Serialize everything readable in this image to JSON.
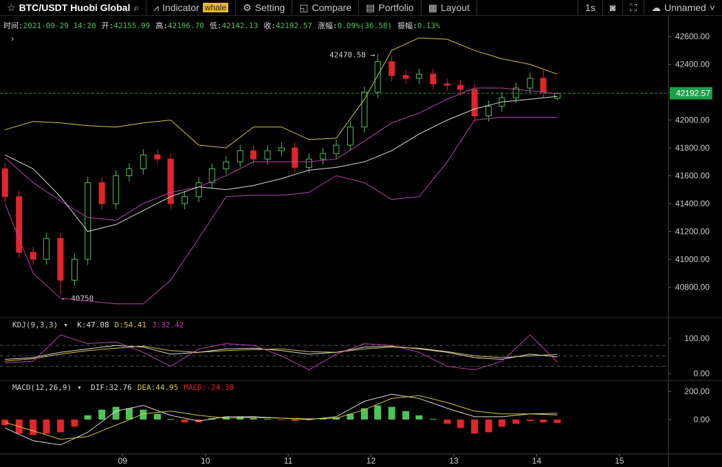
{
  "toolbar": {
    "symbol": "BTC/USDT  Huobi Global",
    "items": [
      "Indicator",
      "Setting",
      "Compare",
      "Portfolio",
      "Layout"
    ],
    "badge": "whale",
    "interval": "1s",
    "layout_name": "Unnamed"
  },
  "info": [
    {
      "label": "时间:",
      "value": "2021-09-29 14:20"
    },
    {
      "label": "开:",
      "value": "42155.99"
    },
    {
      "label": "高:",
      "value": "42196.70"
    },
    {
      "label": "低:",
      "value": "42142.13"
    },
    {
      "label": "收:",
      "value": "42192.57"
    },
    {
      "label": "涨幅:",
      "value": "0.09%(36.58)"
    },
    {
      "label": "振幅:",
      "value": "0.13%"
    }
  ],
  "chart_data": [
    {
      "type": "candlestick",
      "xlim": [
        7.52,
        15.59
      ],
      "ylim": [
        40590,
        42640
      ],
      "grid": false,
      "yticks": [
        {
          "value": 40800,
          "label": "40800.00"
        },
        {
          "value": 41000,
          "label": "41000.00"
        },
        {
          "value": 41200,
          "label": "41200.00"
        },
        {
          "value": 41400,
          "label": "41400.00"
        },
        {
          "value": 41600,
          "label": "41600.00"
        },
        {
          "value": 41800,
          "label": "41800.00"
        },
        {
          "value": 42000,
          "label": "42000.00"
        },
        {
          "value": 42200,
          "label": "42200.00"
        },
        {
          "value": 42400,
          "label": "42400.00"
        },
        {
          "value": 42600,
          "label": "42600.00"
        }
      ],
      "up_color": "#4fc35a",
      "down_color": "#e0262b",
      "last_price_color": "#1f9e4a",
      "max_label": "42470.58 →",
      "min_label": "← 40750",
      "candles": {
        "x": [
          7.58,
          7.75,
          7.92,
          8.08,
          8.25,
          8.42,
          8.58,
          8.75,
          8.92,
          9.08,
          9.25,
          9.42,
          9.58,
          9.75,
          9.92,
          10.08,
          10.25,
          10.42,
          10.58,
          10.75,
          10.92,
          11.08,
          11.25,
          11.42,
          11.58,
          11.75,
          11.92,
          12.08,
          12.25,
          12.42,
          12.58,
          12.75,
          12.92,
          13.08,
          13.25,
          13.42,
          13.58,
          13.75,
          13.92,
          14.08,
          14.25
        ],
        "open": [
          41650,
          41450,
          41050,
          41000,
          41150,
          40850,
          41000,
          41550,
          41400,
          41600,
          41650,
          41750,
          41720,
          41400,
          41450,
          41550,
          41650,
          41700,
          41780,
          41720,
          41780,
          41800,
          41660,
          41720,
          41760,
          41820,
          41950,
          42200,
          42420,
          42320,
          42300,
          42330,
          42260,
          42250,
          42220,
          42030,
          42100,
          42160,
          42230,
          42300,
          42155.99
        ],
        "high": [
          41690,
          41490,
          41090,
          41190,
          41190,
          41040,
          41590,
          41590,
          41640,
          41690,
          41790,
          41790,
          41760,
          41490,
          41590,
          41690,
          41740,
          41820,
          41820,
          41820,
          41840,
          41840,
          41760,
          41800,
          41860,
          41990,
          42240,
          42470.58,
          42460,
          42360,
          42370,
          42370,
          42300,
          42290,
          42260,
          42140,
          42200,
          42270,
          42340,
          42360,
          42196.7
        ],
        "low": [
          41410,
          41010,
          40960,
          40960,
          40750,
          40810,
          40960,
          41360,
          41360,
          41560,
          41610,
          41680,
          41360,
          41360,
          41410,
          41510,
          41610,
          41660,
          41680,
          41680,
          41740,
          41620,
          41620,
          41680,
          41720,
          41780,
          41910,
          42160,
          42280,
          42260,
          42260,
          42220,
          42210,
          42180,
          41990,
          41990,
          42060,
          42120,
          42190,
          42160,
          42142.13
        ],
        "close": [
          41450,
          41050,
          41000,
          41150,
          40850,
          41000,
          41550,
          41400,
          41600,
          41650,
          41750,
          41720,
          41400,
          41450,
          41550,
          41650,
          41700,
          41780,
          41720,
          41780,
          41800,
          41660,
          41720,
          41760,
          41820,
          41950,
          42200,
          42420,
          42320,
          42300,
          42330,
          42260,
          42250,
          42220,
          42030,
          42100,
          42160,
          42230,
          42300,
          42200,
          42192.57
        ]
      },
      "line_x": [
        7.58,
        7.92,
        8.25,
        8.58,
        8.92,
        9.25,
        9.58,
        9.92,
        10.25,
        10.58,
        10.92,
        11.25,
        11.58,
        11.92,
        12.25,
        12.58,
        12.92,
        13.25,
        13.58,
        13.92,
        14.25
      ],
      "series": [
        {
          "color": "#d6c640",
          "values": [
            41930,
            41990,
            41980,
            41960,
            41950,
            41980,
            42000,
            41820,
            41800,
            41950,
            41950,
            41860,
            41870,
            42150,
            42500,
            42590,
            42580,
            42500,
            42440,
            42400,
            42330
          ]
        },
        {
          "color": "#c040b0",
          "values": [
            41730,
            41550,
            41420,
            41300,
            41280,
            41400,
            41480,
            41520,
            41600,
            41700,
            41700,
            41700,
            41720,
            41850,
            41980,
            42050,
            42150,
            42230,
            42230,
            42210,
            42190
          ]
        },
        {
          "color": "#c040b0",
          "values": [
            41400,
            40900,
            40720,
            40700,
            40680,
            40680,
            40850,
            41150,
            41450,
            41460,
            41460,
            41480,
            41600,
            41550,
            41430,
            41450,
            41700,
            42000,
            42020,
            42020,
            42020
          ]
        },
        {
          "color": "#dcdcdc",
          "values": [
            41750,
            41650,
            41450,
            41200,
            41250,
            41350,
            41450,
            41520,
            41500,
            41530,
            41580,
            41640,
            41660,
            41700,
            41780,
            41900,
            42000,
            42080,
            42130,
            42150,
            42170
          ]
        }
      ]
    },
    {
      "type": "line",
      "title": "KDJ(9,3,3)",
      "xlim": [
        7.52,
        15.59
      ],
      "ylim": [
        -18,
        159
      ],
      "grid": false,
      "yticks": [
        {
          "value": 0,
          "label": "0.00"
        },
        {
          "value": 100,
          "label": "100.00"
        }
      ],
      "reference_lines": [
        20,
        50,
        80
      ],
      "line_x": [
        7.58,
        7.92,
        8.25,
        8.58,
        8.92,
        9.25,
        9.58,
        9.92,
        10.25,
        10.58,
        10.92,
        11.25,
        11.58,
        11.92,
        12.25,
        12.58,
        12.92,
        13.25,
        13.58,
        13.92,
        14.25
      ],
      "series": [
        {
          "label": "K:47.08",
          "color": "#dcdcdc",
          "values": [
            40,
            45,
            60,
            70,
            80,
            75,
            55,
            60,
            70,
            72,
            65,
            55,
            60,
            75,
            78,
            70,
            60,
            45,
            40,
            55,
            47.08
          ]
        },
        {
          "label": "D:54.41",
          "color": "#d6c640",
          "values": [
            35,
            42,
            55,
            65,
            72,
            78,
            65,
            60,
            65,
            68,
            70,
            62,
            60,
            70,
            75,
            72,
            62,
            50,
            45,
            50,
            54.41
          ]
        },
        {
          "label": "J:32.42",
          "color": "#c040b0",
          "values": [
            30,
            35,
            110,
            85,
            90,
            60,
            20,
            70,
            85,
            80,
            50,
            10,
            55,
            85,
            80,
            60,
            20,
            10,
            35,
            110,
            32.42
          ]
        }
      ]
    },
    {
      "type": "bar",
      "title": "MACD(12,26,9)",
      "xlim": [
        7.52,
        15.59
      ],
      "ylim": [
        -234,
        278
      ],
      "grid": false,
      "yticks": [
        {
          "value": 0,
          "label": "0.00"
        },
        {
          "value": 200,
          "label": "200.00"
        }
      ],
      "xticks": [
        {
          "value": 9,
          "label": "09"
        },
        {
          "value": 10,
          "label": "10"
        },
        {
          "value": 11,
          "label": "11"
        },
        {
          "value": 12,
          "label": "12"
        },
        {
          "value": 13,
          "label": "13"
        },
        {
          "value": 14,
          "label": "14"
        },
        {
          "value": 15,
          "label": "15"
        }
      ],
      "bars": {
        "label": "MACD:-24.38",
        "up_color": "#4fc35a",
        "down_color": "#e0262b",
        "x": [
          7.58,
          7.75,
          7.92,
          8.08,
          8.25,
          8.42,
          8.58,
          8.75,
          8.92,
          9.08,
          9.25,
          9.42,
          9.58,
          9.75,
          9.92,
          10.08,
          10.25,
          10.42,
          10.58,
          10.75,
          10.92,
          11.08,
          11.25,
          11.42,
          11.58,
          11.75,
          11.92,
          12.08,
          12.25,
          12.42,
          12.58,
          12.75,
          12.92,
          13.08,
          13.25,
          13.42,
          13.58,
          13.75,
          13.92,
          14.08,
          14.25
        ],
        "values": [
          -40,
          -100,
          -110,
          -100,
          -90,
          -50,
          30,
          70,
          90,
          80,
          70,
          40,
          5,
          -20,
          -20,
          10,
          20,
          20,
          10,
          5,
          -5,
          -10,
          -5,
          5,
          15,
          40,
          80,
          100,
          90,
          60,
          30,
          5,
          -30,
          -60,
          -100,
          -90,
          -50,
          -30,
          -10,
          -20,
          -24.38
        ]
      },
      "line_x": [
        7.58,
        7.92,
        8.25,
        8.58,
        8.92,
        9.25,
        9.58,
        9.92,
        10.25,
        10.58,
        10.92,
        11.25,
        11.58,
        11.92,
        12.25,
        12.58,
        12.92,
        13.25,
        13.58,
        13.92,
        14.25
      ],
      "series": [
        {
          "label": "DIF:32.76",
          "color": "#dcdcdc",
          "values": [
            -60,
            -150,
            -180,
            -90,
            60,
            100,
            30,
            -10,
            20,
            20,
            10,
            0,
            20,
            130,
            180,
            150,
            80,
            20,
            20,
            40,
            32.76
          ]
        },
        {
          "label": "DEA:44.95",
          "color": "#d6c640",
          "values": [
            -20,
            -80,
            -140,
            -120,
            -40,
            40,
            60,
            30,
            10,
            15,
            10,
            5,
            10,
            70,
            150,
            170,
            120,
            60,
            40,
            40,
            44.95
          ]
        }
      ]
    }
  ]
}
